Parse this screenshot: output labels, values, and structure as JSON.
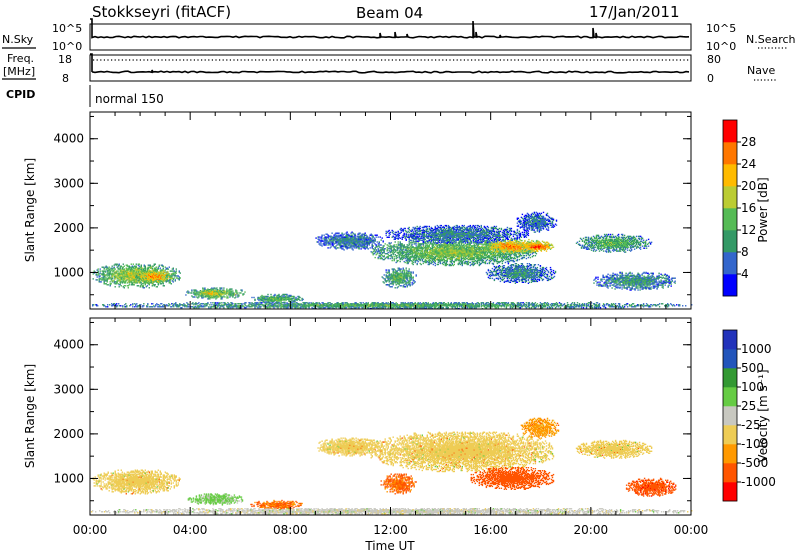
{
  "header": {
    "station": "Stokkseyri (fitACF)",
    "beam": "Beam 04",
    "date": "17/Jan/2011"
  },
  "top_panels": {
    "nsky_label": "N.Sky",
    "nsky_ticks": [
      "10^5",
      "10^0"
    ],
    "nsearch_label": "N.Search",
    "nsearch_ticks": [
      "10^5",
      "10^0"
    ],
    "freq_label": "Freq.",
    "freq_unit": "[MHz]",
    "freq_ticks": [
      "18",
      "8"
    ],
    "nave_label": "Nave",
    "nave_ticks": [
      "80",
      "0"
    ],
    "cpid_label": "CPID",
    "cpid_value": "normal 150"
  },
  "colors": {
    "power": [
      "#0000ff",
      "#3366cc",
      "#339966",
      "#55bb55",
      "#bbcc33",
      "#ffbb00",
      "#ff7700",
      "#ff0000"
    ],
    "velocity": [
      "#ff0000",
      "#ff5500",
      "#ff9900",
      "#eecc55",
      "#c8c8c0",
      "#66cc44",
      "#339933",
      "#2255bb",
      "#2233bb"
    ]
  },
  "chart_data": [
    {
      "type": "heatmap",
      "ylabel": "Slant Range [km]",
      "ylim": [
        180,
        4600
      ],
      "yticks": [
        "1000",
        "2000",
        "3000",
        "4000"
      ],
      "xlim": [
        0,
        24
      ],
      "xticks": [
        "00:00",
        "04:00",
        "08:00",
        "12:00",
        "16:00",
        "20:00",
        "00:00"
      ],
      "colorbar": {
        "label": "Power [dB]",
        "range": [
          0,
          32
        ],
        "ticks": [
          "4",
          "8",
          "12",
          "16",
          "20",
          "24",
          "28"
        ]
      },
      "regions": [
        {
          "t0": 0.1,
          "t1": 3.6,
          "r0": 650,
          "r1": 1200,
          "level": 18
        },
        {
          "t0": 1.8,
          "t1": 3.3,
          "r0": 750,
          "r1": 1050,
          "level": 25
        },
        {
          "t0": 3.8,
          "t1": 6.2,
          "r0": 400,
          "r1": 650,
          "level": 17
        },
        {
          "t0": 4.3,
          "t1": 5.3,
          "r0": 430,
          "r1": 620,
          "level": 22
        },
        {
          "t0": 6.4,
          "t1": 8.5,
          "r0": 300,
          "r1": 500,
          "level": 14
        },
        {
          "t0": 9.0,
          "t1": 11.7,
          "r0": 1500,
          "r1": 1900,
          "level": 9
        },
        {
          "t0": 11.2,
          "t1": 17.8,
          "r0": 1150,
          "r1": 1750,
          "level": 16
        },
        {
          "t0": 15.5,
          "t1": 18.2,
          "r0": 1400,
          "r1": 1750,
          "level": 25
        },
        {
          "t0": 17.2,
          "t1": 18.5,
          "r0": 1450,
          "r1": 1700,
          "level": 29
        },
        {
          "t0": 11.8,
          "t1": 17.5,
          "r0": 1650,
          "r1": 2050,
          "level": 9
        },
        {
          "t0": 17.0,
          "t1": 18.6,
          "r0": 1900,
          "r1": 2350,
          "level": 8
        },
        {
          "t0": 11.6,
          "t1": 13.0,
          "r0": 650,
          "r1": 1100,
          "level": 14
        },
        {
          "t0": 15.8,
          "t1": 18.6,
          "r0": 750,
          "r1": 1200,
          "level": 10
        },
        {
          "t0": 19.4,
          "t1": 22.4,
          "r0": 1450,
          "r1": 1850,
          "level": 14
        },
        {
          "t0": 20.1,
          "t1": 23.4,
          "r0": 600,
          "r1": 1000,
          "level": 11
        },
        {
          "t0": 0.0,
          "t1": 24.0,
          "r0": 180,
          "r1": 330,
          "level": 13
        }
      ]
    },
    {
      "type": "heatmap",
      "ylabel": "Slant Range [km]",
      "ylim": [
        180,
        4600
      ],
      "yticks": [
        "1000",
        "2000",
        "3000",
        "4000"
      ],
      "xlim": [
        0,
        24
      ],
      "xticks": [
        "00:00",
        "04:00",
        "08:00",
        "12:00",
        "16:00",
        "20:00",
        "00:00"
      ],
      "xlabel": "Time UT",
      "colorbar": {
        "label": "Velocity [m s⁻¹]",
        "ticks": [
          "1000",
          "500",
          "100",
          "25",
          "-25",
          "-100",
          "-500",
          "-1000"
        ]
      },
      "regions": [
        {
          "t0": 0.1,
          "t1": 3.6,
          "r0": 650,
          "r1": 1200,
          "level": 0
        },
        {
          "t0": 3.9,
          "t1": 6.1,
          "r0": 400,
          "r1": 650,
          "level": 150
        },
        {
          "t0": 6.4,
          "t1": 8.5,
          "r0": 300,
          "r1": 500,
          "level": -120
        },
        {
          "t0": 9.0,
          "t1": 11.7,
          "r0": 1500,
          "r1": 1900,
          "level": 0
        },
        {
          "t0": 11.2,
          "t1": 18.5,
          "r0": 1150,
          "r1": 2050,
          "level": 0
        },
        {
          "t0": 15.2,
          "t1": 18.5,
          "r0": 750,
          "r1": 1250,
          "level": -300
        },
        {
          "t0": 17.2,
          "t1": 18.7,
          "r0": 1900,
          "r1": 2350,
          "level": -60
        },
        {
          "t0": 11.6,
          "t1": 13.0,
          "r0": 650,
          "r1": 1100,
          "level": -150
        },
        {
          "t0": 19.4,
          "t1": 22.4,
          "r0": 1450,
          "r1": 1850,
          "level": 0
        },
        {
          "t0": 21.4,
          "t1": 23.4,
          "r0": 600,
          "r1": 1000,
          "level": -350
        },
        {
          "t0": 0.0,
          "t1": 24.0,
          "r0": 180,
          "r1": 330,
          "level": 60
        }
      ]
    }
  ]
}
